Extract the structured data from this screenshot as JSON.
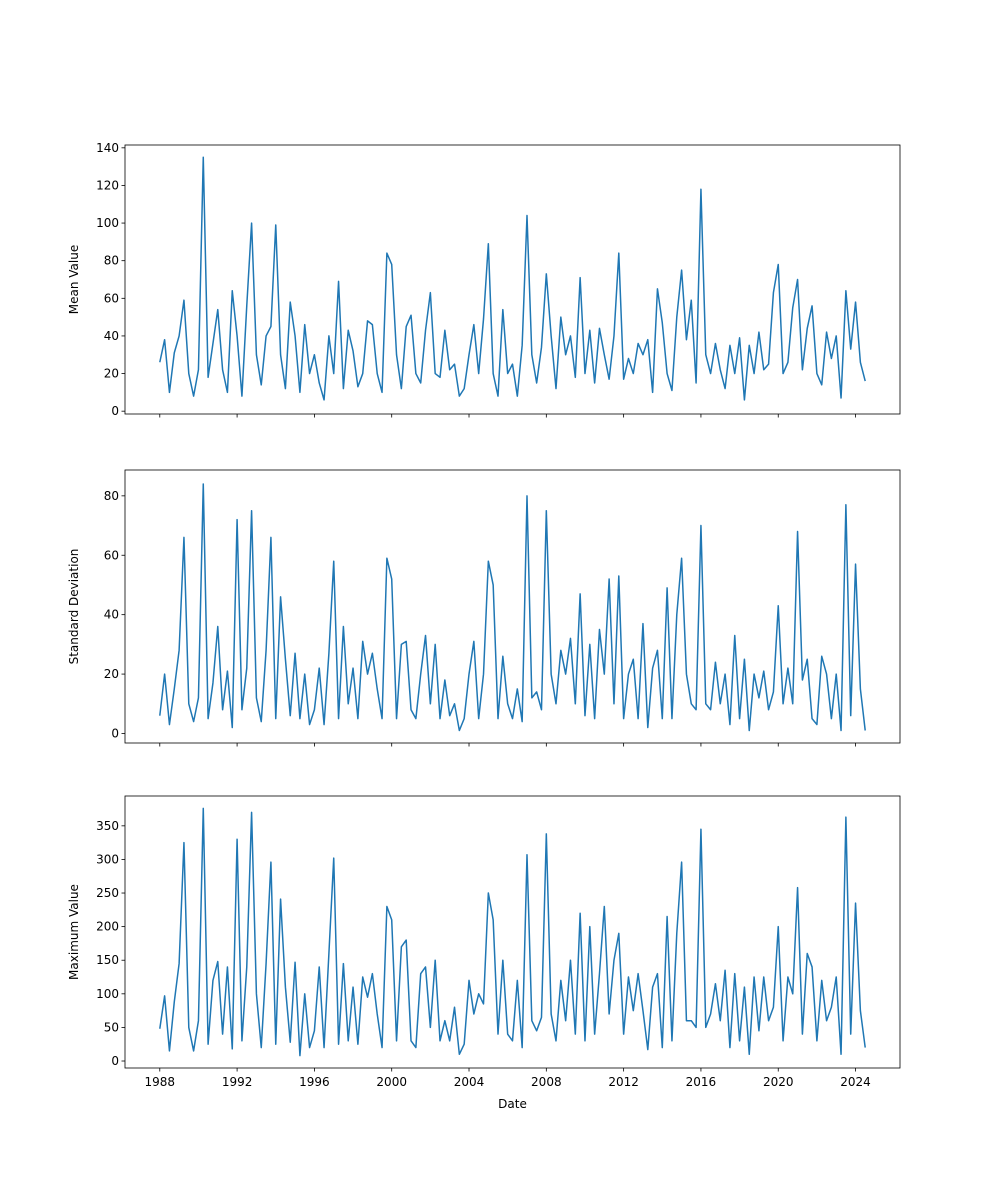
{
  "chart_data": [
    {
      "type": "line",
      "ylabel": "Mean Value",
      "xlim": [
        1986.2,
        2026.3
      ],
      "ylim": [
        -1.5,
        141.5
      ],
      "xticks": [
        1988,
        1992,
        1996,
        2000,
        2004,
        2008,
        2012,
        2016,
        2020,
        2024
      ],
      "show_xtick_labels": false,
      "yticks": [
        0,
        20,
        40,
        60,
        80,
        100,
        120,
        140
      ],
      "x": [
        1988,
        1988.25,
        1988.5,
        1988.75,
        1989,
        1989.25,
        1989.5,
        1989.75,
        1990,
        1990.25,
        1990.5,
        1990.75,
        1991,
        1991.25,
        1991.5,
        1991.75,
        1992,
        1992.25,
        1992.5,
        1992.75,
        1993,
        1993.25,
        1993.5,
        1993.75,
        1994,
        1994.25,
        1994.5,
        1994.75,
        1995,
        1995.25,
        1995.5,
        1995.75,
        1996,
        1996.25,
        1996.5,
        1996.75,
        1997,
        1997.25,
        1997.5,
        1997.75,
        1998,
        1998.25,
        1998.5,
        1998.75,
        1999,
        1999.25,
        1999.5,
        1999.75,
        2000,
        2000.25,
        2000.5,
        2000.75,
        2001,
        2001.25,
        2001.5,
        2001.75,
        2002,
        2002.25,
        2002.5,
        2002.75,
        2003,
        2003.25,
        2003.5,
        2003.75,
        2004,
        2004.25,
        2004.5,
        2004.75,
        2005,
        2005.25,
        2005.5,
        2005.75,
        2006,
        2006.25,
        2006.5,
        2006.75,
        2007,
        2007.25,
        2007.5,
        2007.75,
        2008,
        2008.25,
        2008.5,
        2008.75,
        2009,
        2009.25,
        2009.5,
        2009.75,
        2010,
        2010.25,
        2010.5,
        2010.75,
        2011,
        2011.25,
        2011.5,
        2011.75,
        2012,
        2012.25,
        2012.5,
        2012.75,
        2013,
        2013.25,
        2013.5,
        2013.75,
        2014,
        2014.25,
        2014.5,
        2014.75,
        2015,
        2015.25,
        2015.5,
        2015.75,
        2016,
        2016.25,
        2016.5,
        2016.75,
        2017,
        2017.25,
        2017.5,
        2017.75,
        2018,
        2018.25,
        2018.5,
        2018.75,
        2019,
        2019.25,
        2019.5,
        2019.75,
        2020,
        2020.25,
        2020.5,
        2020.75,
        2021,
        2021.25,
        2021.5,
        2021.75,
        2022,
        2022.25,
        2022.5,
        2022.75,
        2023,
        2023.25,
        2023.5,
        2023.75,
        2024,
        2024.25,
        2024.5
      ],
      "series": [
        {
          "color": "#1f77b4",
          "values": [
            26,
            38,
            10,
            31,
            40,
            59,
            20,
            8,
            22,
            135,
            18,
            36,
            54,
            22,
            10,
            64,
            40,
            8,
            56,
            100,
            30,
            14,
            40,
            45,
            99,
            30,
            12,
            58,
            40,
            10,
            46,
            20,
            30,
            15,
            6,
            40,
            20,
            69,
            12,
            43,
            32,
            13,
            20,
            48,
            46,
            20,
            10,
            84,
            78,
            30,
            12,
            45,
            51,
            20,
            15,
            43,
            63,
            20,
            18,
            43,
            22,
            25,
            8,
            12,
            30,
            46,
            20,
            49,
            89,
            20,
            8,
            54,
            20,
            25,
            8,
            35,
            104,
            30,
            15,
            34,
            73,
            40,
            12,
            50,
            30,
            40,
            18,
            71,
            20,
            43,
            15,
            44,
            30,
            17,
            40,
            84,
            17,
            28,
            20,
            36,
            30,
            38,
            10,
            65,
            47,
            20,
            11,
            50,
            75,
            38,
            59,
            15,
            118,
            30,
            20,
            36,
            22,
            12,
            35,
            20,
            39,
            6,
            35,
            20,
            42,
            22,
            25,
            63,
            78,
            20,
            26,
            55,
            70,
            22,
            44,
            56,
            20,
            14,
            42,
            28,
            40,
            7,
            64,
            33,
            58,
            26,
            16
          ]
        }
      ]
    },
    {
      "type": "line",
      "ylabel": "Standard Deviation",
      "xlim": [
        1986.2,
        2026.3
      ],
      "ylim": [
        -3.2,
        88.7
      ],
      "xticks": [
        1988,
        1992,
        1996,
        2000,
        2004,
        2008,
        2012,
        2016,
        2020,
        2024
      ],
      "show_xtick_labels": false,
      "yticks": [
        0,
        20,
        40,
        60,
        80
      ],
      "x": [
        1988,
        1988.25,
        1988.5,
        1988.75,
        1989,
        1989.25,
        1989.5,
        1989.75,
        1990,
        1990.25,
        1990.5,
        1990.75,
        1991,
        1991.25,
        1991.5,
        1991.75,
        1992,
        1992.25,
        1992.5,
        1992.75,
        1993,
        1993.25,
        1993.5,
        1993.75,
        1994,
        1994.25,
        1994.5,
        1994.75,
        1995,
        1995.25,
        1995.5,
        1995.75,
        1996,
        1996.25,
        1996.5,
        1996.75,
        1997,
        1997.25,
        1997.5,
        1997.75,
        1998,
        1998.25,
        1998.5,
        1998.75,
        1999,
        1999.25,
        1999.5,
        1999.75,
        2000,
        2000.25,
        2000.5,
        2000.75,
        2001,
        2001.25,
        2001.5,
        2001.75,
        2002,
        2002.25,
        2002.5,
        2002.75,
        2003,
        2003.25,
        2003.5,
        2003.75,
        2004,
        2004.25,
        2004.5,
        2004.75,
        2005,
        2005.25,
        2005.5,
        2005.75,
        2006,
        2006.25,
        2006.5,
        2006.75,
        2007,
        2007.25,
        2007.5,
        2007.75,
        2008,
        2008.25,
        2008.5,
        2008.75,
        2009,
        2009.25,
        2009.5,
        2009.75,
        2010,
        2010.25,
        2010.5,
        2010.75,
        2011,
        2011.25,
        2011.5,
        2011.75,
        2012,
        2012.25,
        2012.5,
        2012.75,
        2013,
        2013.25,
        2013.5,
        2013.75,
        2014,
        2014.25,
        2014.5,
        2014.75,
        2015,
        2015.25,
        2015.5,
        2015.75,
        2016,
        2016.25,
        2016.5,
        2016.75,
        2017,
        2017.25,
        2017.5,
        2017.75,
        2018,
        2018.25,
        2018.5,
        2018.75,
        2019,
        2019.25,
        2019.5,
        2019.75,
        2020,
        2020.25,
        2020.5,
        2020.75,
        2021,
        2021.25,
        2021.5,
        2021.75,
        2022,
        2022.25,
        2022.5,
        2022.75,
        2023,
        2023.25,
        2023.5,
        2023.75,
        2024,
        2024.25,
        2024.5
      ],
      "series": [
        {
          "color": "#1f77b4",
          "values": [
            6,
            20,
            3,
            15,
            28,
            66,
            10,
            4,
            12,
            84,
            5,
            17,
            36,
            8,
            21,
            2,
            72,
            8,
            22,
            75,
            12,
            4,
            28,
            66,
            5,
            46,
            25,
            6,
            27,
            5,
            20,
            3,
            8,
            22,
            3,
            27,
            58,
            5,
            36,
            10,
            22,
            5,
            31,
            20,
            27,
            15,
            5,
            59,
            52,
            5,
            30,
            31,
            8,
            5,
            20,
            33,
            10,
            30,
            5,
            18,
            6,
            10,
            1,
            5,
            20,
            31,
            5,
            20,
            58,
            50,
            5,
            26,
            10,
            5,
            15,
            4,
            80,
            12,
            14,
            8,
            75,
            20,
            10,
            28,
            20,
            32,
            10,
            47,
            6,
            30,
            5,
            35,
            20,
            52,
            10,
            53,
            5,
            20,
            25,
            5,
            37,
            2,
            22,
            28,
            5,
            49,
            5,
            40,
            59,
            20,
            10,
            8,
            70,
            10,
            8,
            24,
            10,
            20,
            3,
            33,
            5,
            25,
            1,
            20,
            12,
            21,
            8,
            14,
            43,
            10,
            22,
            10,
            68,
            18,
            25,
            5,
            3,
            26,
            20,
            5,
            20,
            1,
            77,
            6,
            57,
            15,
            1
          ]
        }
      ]
    },
    {
      "type": "line",
      "ylabel": "Maximum Value",
      "xlabel": "Date",
      "xlim": [
        1986.2,
        2026.3
      ],
      "ylim": [
        -10.4,
        394.4
      ],
      "xticks": [
        1988,
        1992,
        1996,
        2000,
        2004,
        2008,
        2012,
        2016,
        2020,
        2024
      ],
      "show_xtick_labels": true,
      "yticks": [
        0,
        50,
        100,
        150,
        200,
        250,
        300,
        350
      ],
      "x": [
        1988,
        1988.25,
        1988.5,
        1988.75,
        1989,
        1989.25,
        1989.5,
        1989.75,
        1990,
        1990.25,
        1990.5,
        1990.75,
        1991,
        1991.25,
        1991.5,
        1991.75,
        1992,
        1992.25,
        1992.5,
        1992.75,
        1993,
        1993.25,
        1993.5,
        1993.75,
        1994,
        1994.25,
        1994.5,
        1994.75,
        1995,
        1995.25,
        1995.5,
        1995.75,
        1996,
        1996.25,
        1996.5,
        1996.75,
        1997,
        1997.25,
        1997.5,
        1997.75,
        1998,
        1998.25,
        1998.5,
        1998.75,
        1999,
        1999.25,
        1999.5,
        1999.75,
        2000,
        2000.25,
        2000.5,
        2000.75,
        2001,
        2001.25,
        2001.5,
        2001.75,
        2002,
        2002.25,
        2002.5,
        2002.75,
        2003,
        2003.25,
        2003.5,
        2003.75,
        2004,
        2004.25,
        2004.5,
        2004.75,
        2005,
        2005.25,
        2005.5,
        2005.75,
        2006,
        2006.25,
        2006.5,
        2006.75,
        2007,
        2007.25,
        2007.5,
        2007.75,
        2008,
        2008.25,
        2008.5,
        2008.75,
        2009,
        2009.25,
        2009.5,
        2009.75,
        2010,
        2010.25,
        2010.5,
        2010.75,
        2011,
        2011.25,
        2011.5,
        2011.75,
        2012,
        2012.25,
        2012.5,
        2012.75,
        2013,
        2013.25,
        2013.5,
        2013.75,
        2014,
        2014.25,
        2014.5,
        2014.75,
        2015,
        2015.25,
        2015.5,
        2015.75,
        2016,
        2016.25,
        2016.5,
        2016.75,
        2017,
        2017.25,
        2017.5,
        2017.75,
        2018,
        2018.25,
        2018.5,
        2018.75,
        2019,
        2019.25,
        2019.5,
        2019.75,
        2020,
        2020.25,
        2020.5,
        2020.75,
        2021,
        2021.25,
        2021.5,
        2021.75,
        2022,
        2022.25,
        2022.5,
        2022.75,
        2023,
        2023.25,
        2023.5,
        2023.75,
        2024,
        2024.25,
        2024.5
      ],
      "series": [
        {
          "color": "#1f77b4",
          "values": [
            48,
            97,
            15,
            88,
            145,
            325,
            50,
            15,
            60,
            376,
            25,
            120,
            148,
            40,
            140,
            18,
            330,
            30,
            140,
            370,
            100,
            20,
            145,
            296,
            25,
            241,
            110,
            28,
            147,
            8,
            100,
            20,
            45,
            140,
            20,
            160,
            302,
            25,
            145,
            30,
            110,
            25,
            125,
            95,
            130,
            70,
            20,
            230,
            210,
            30,
            170,
            180,
            30,
            20,
            130,
            140,
            50,
            150,
            30,
            60,
            30,
            80,
            10,
            25,
            120,
            70,
            100,
            85,
            250,
            210,
            40,
            150,
            40,
            30,
            120,
            20,
            307,
            60,
            45,
            65,
            338,
            70,
            30,
            120,
            60,
            150,
            40,
            220,
            30,
            200,
            40,
            130,
            230,
            70,
            150,
            190,
            40,
            125,
            75,
            130,
            75,
            17,
            110,
            130,
            20,
            215,
            30,
            190,
            296,
            60,
            60,
            50,
            345,
            50,
            70,
            115,
            60,
            135,
            20,
            130,
            30,
            110,
            10,
            125,
            45,
            125,
            60,
            80,
            200,
            30,
            125,
            100,
            258,
            40,
            160,
            140,
            30,
            120,
            60,
            80,
            125,
            10,
            363,
            40,
            235,
            75,
            20
          ]
        }
      ]
    }
  ]
}
